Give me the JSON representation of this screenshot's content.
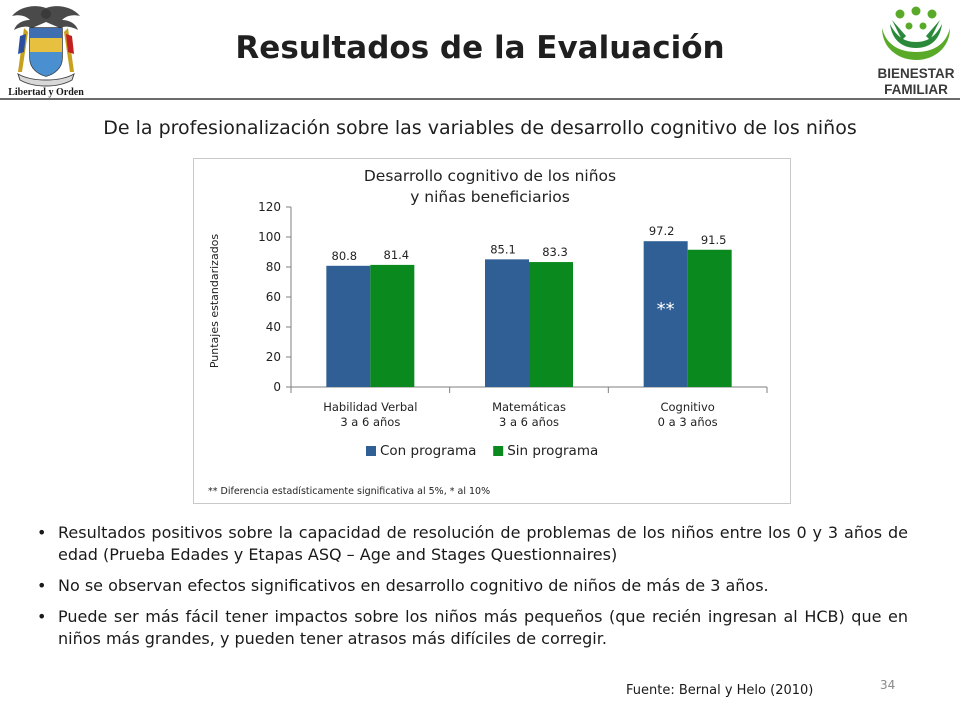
{
  "header": {
    "title": "Resultados de la Evaluación",
    "left_logo_text": "Libertad y Orden",
    "right_logo_text_1": "BIENESTAR",
    "right_logo_text_2": "FAMILIAR"
  },
  "subtitle": "De la profesionalización sobre las variables de desarrollo cognitivo de los niños",
  "chart_data": {
    "type": "bar",
    "title_line1": "Desarrollo cognitivo de los niños",
    "title_line2": "y niñas beneficiarios",
    "ylabel": "Puntajes estandarizados",
    "xlabel": "",
    "ylim": [
      0,
      120
    ],
    "yticks": [
      0,
      20,
      40,
      60,
      80,
      100,
      120
    ],
    "categories": [
      {
        "line1": "Habilidad Verbal",
        "line2": "3 a 6 años"
      },
      {
        "line1": "Matemáticas",
        "line2": "3 a 6 años"
      },
      {
        "line1": "Cognitivo",
        "line2": "0 a 3 años"
      }
    ],
    "series": [
      {
        "name": "Con programa",
        "color": "#2f5f95",
        "values": [
          80.8,
          85.1,
          97.2
        ],
        "labels": [
          "80.8",
          "85.1",
          "97.2"
        ]
      },
      {
        "name": "Sin programa",
        "color": "#0a8a1e",
        "values": [
          81.4,
          83.3,
          91.5
        ],
        "labels": [
          "81.4",
          "83.3",
          "91.5"
        ]
      }
    ],
    "annotation": "**",
    "footnote": "** Diferencia estadísticamente significativa al 5%, * al 10%",
    "legend_position": "bottom",
    "grid": false
  },
  "bullets": [
    "Resultados positivos sobre la capacidad de resolución de problemas de los niños entre los 0 y 3 años de edad (Prueba Edades y Etapas ASQ – Age and Stages Questionnaires)",
    "No se observan efectos significativos en desarrollo cognitivo de niños de más de 3 años.",
    "Puede ser más fácil tener impactos sobre los niños más pequeños (que recién ingresan al HCB) que en niños más grandes, y pueden tener atrasos más difíciles de corregir."
  ],
  "bullet_marker": "•",
  "source": "Fuente: Bernal y Helo (2010)",
  "page_number": "34"
}
